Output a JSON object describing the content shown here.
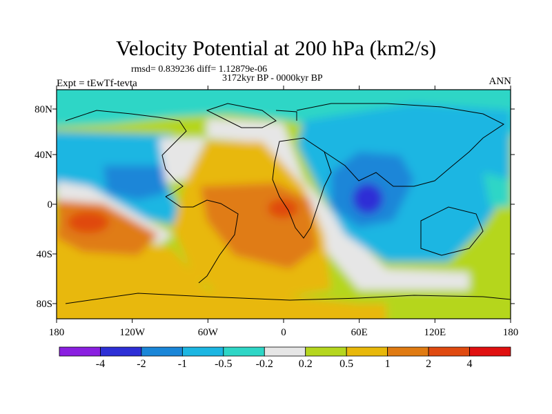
{
  "title": "Velocity Potential at 200 hPa (km2/s)",
  "stats": "rmsd= 0.839236 diff= 1.12879e-06",
  "period": "3172kyr BP - 0000kyr BP",
  "experiment": "Expt = tEwTf-tevta",
  "season": "ANN",
  "lat_ticks": [
    "80N",
    "40N",
    "0",
    "40S",
    "80S"
  ],
  "lon_ticks": [
    "180",
    "120W",
    "60W",
    "0",
    "60E",
    "120E",
    "180"
  ],
  "colorbar": {
    "labels": [
      "-4",
      "-2",
      "-1",
      "-0.5",
      "-0.2",
      "0.2",
      "0.5",
      "1",
      "2",
      "4"
    ],
    "colors": [
      "#8a1fe0",
      "#2d2fd6",
      "#1a86d8",
      "#1cb6e2",
      "#2ed6c6",
      "#e6e6e6",
      "#b5d61e",
      "#e8b80a",
      "#e07b12",
      "#e04a10",
      "#e01010"
    ]
  }
}
